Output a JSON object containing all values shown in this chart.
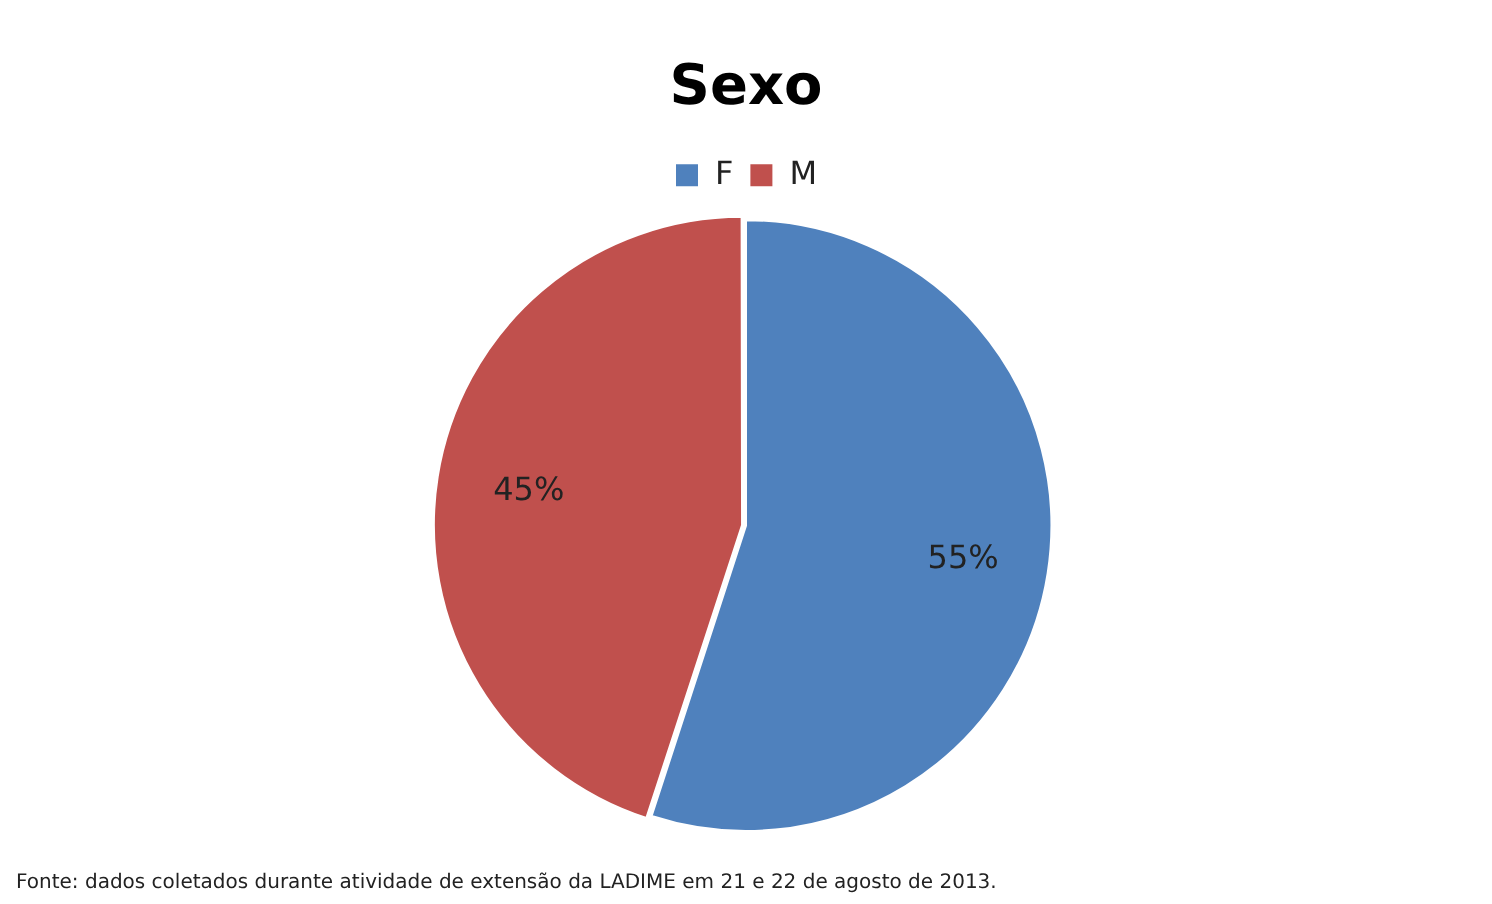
{
  "chart_data": {
    "type": "pie",
    "title": "Sexo",
    "categories": [
      "F",
      "M"
    ],
    "values": [
      55,
      45
    ],
    "colors": [
      "#4f81bd",
      "#c0504d"
    ],
    "legend": "top",
    "value_labels": [
      "55%",
      "45%"
    ],
    "annotations": [
      "Fonte: dados coletados durante atividade de extensão da LADIME em 21 e 22 de agosto de 2013."
    ]
  }
}
